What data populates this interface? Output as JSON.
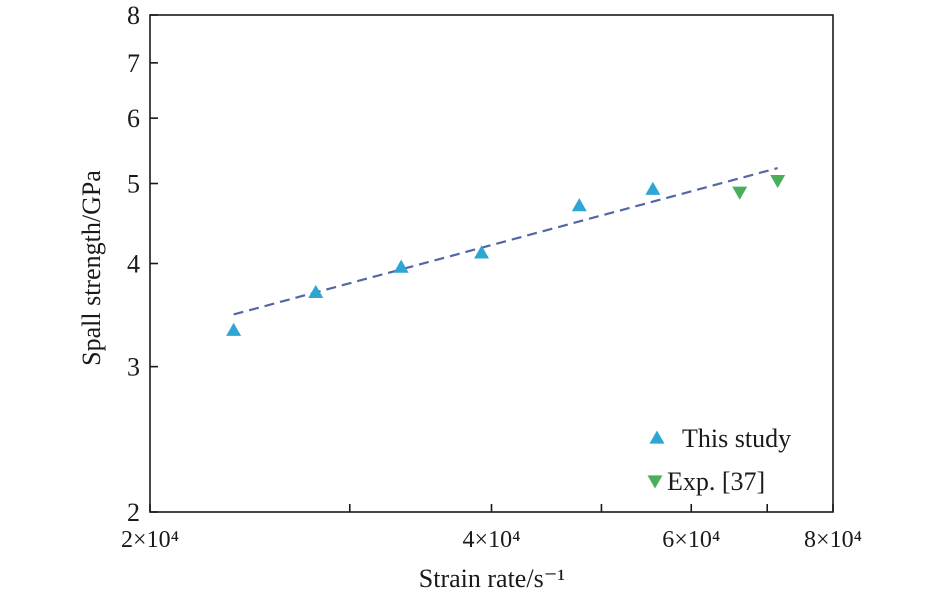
{
  "chart_data": {
    "type": "scatter",
    "xscale": "log",
    "yscale": "log",
    "xlim": [
      20000,
      80000
    ],
    "ylim": [
      2,
      8
    ],
    "xlabel": "Strain rate/s⁻¹",
    "ylabel": "Spall strength/GPa",
    "xticks": [
      {
        "value": 20000,
        "label": "2×10⁴"
      },
      {
        "value": 30000,
        "label": ""
      },
      {
        "value": 40000,
        "label": "4×10⁴"
      },
      {
        "value": 50000,
        "label": ""
      },
      {
        "value": 60000,
        "label": "6×10⁴"
      },
      {
        "value": 70000,
        "label": ""
      },
      {
        "value": 80000,
        "label": "8×10⁴"
      }
    ],
    "yticks": [
      {
        "value": 2,
        "label": "2"
      },
      {
        "value": 3,
        "label": "3"
      },
      {
        "value": 4,
        "label": "4"
      },
      {
        "value": 5,
        "label": "5"
      },
      {
        "value": 6,
        "label": "6"
      },
      {
        "value": 7,
        "label": "7"
      },
      {
        "value": 8,
        "label": "8"
      }
    ],
    "series": [
      {
        "name": "This study",
        "marker": "triangle-up",
        "color": "#2ea6d4",
        "points": [
          {
            "x": 23700,
            "y": 3.32
          },
          {
            "x": 28000,
            "y": 3.69
          },
          {
            "x": 33300,
            "y": 3.96
          },
          {
            "x": 39200,
            "y": 4.12
          },
          {
            "x": 47800,
            "y": 4.7
          },
          {
            "x": 55500,
            "y": 4.92
          }
        ]
      },
      {
        "name": "Exp. [37]",
        "marker": "triangle-down",
        "color": "#4cae5c",
        "points": [
          {
            "x": 66200,
            "y": 4.88
          },
          {
            "x": 71500,
            "y": 5.04
          }
        ]
      }
    ],
    "fit_line": {
      "style": "dashed",
      "color": "#5566a6",
      "points": [
        {
          "x": 23700,
          "y": 3.47
        },
        {
          "x": 71500,
          "y": 5.22
        }
      ]
    },
    "legend": {
      "position": "bottom-right",
      "entries": [
        {
          "label": "This study",
          "marker": "triangle-up",
          "color": "#2ea6d4"
        },
        {
          "label": "Exp. [37]",
          "marker": "triangle-down",
          "color": "#4cae5c"
        }
      ]
    },
    "grid": false
  }
}
